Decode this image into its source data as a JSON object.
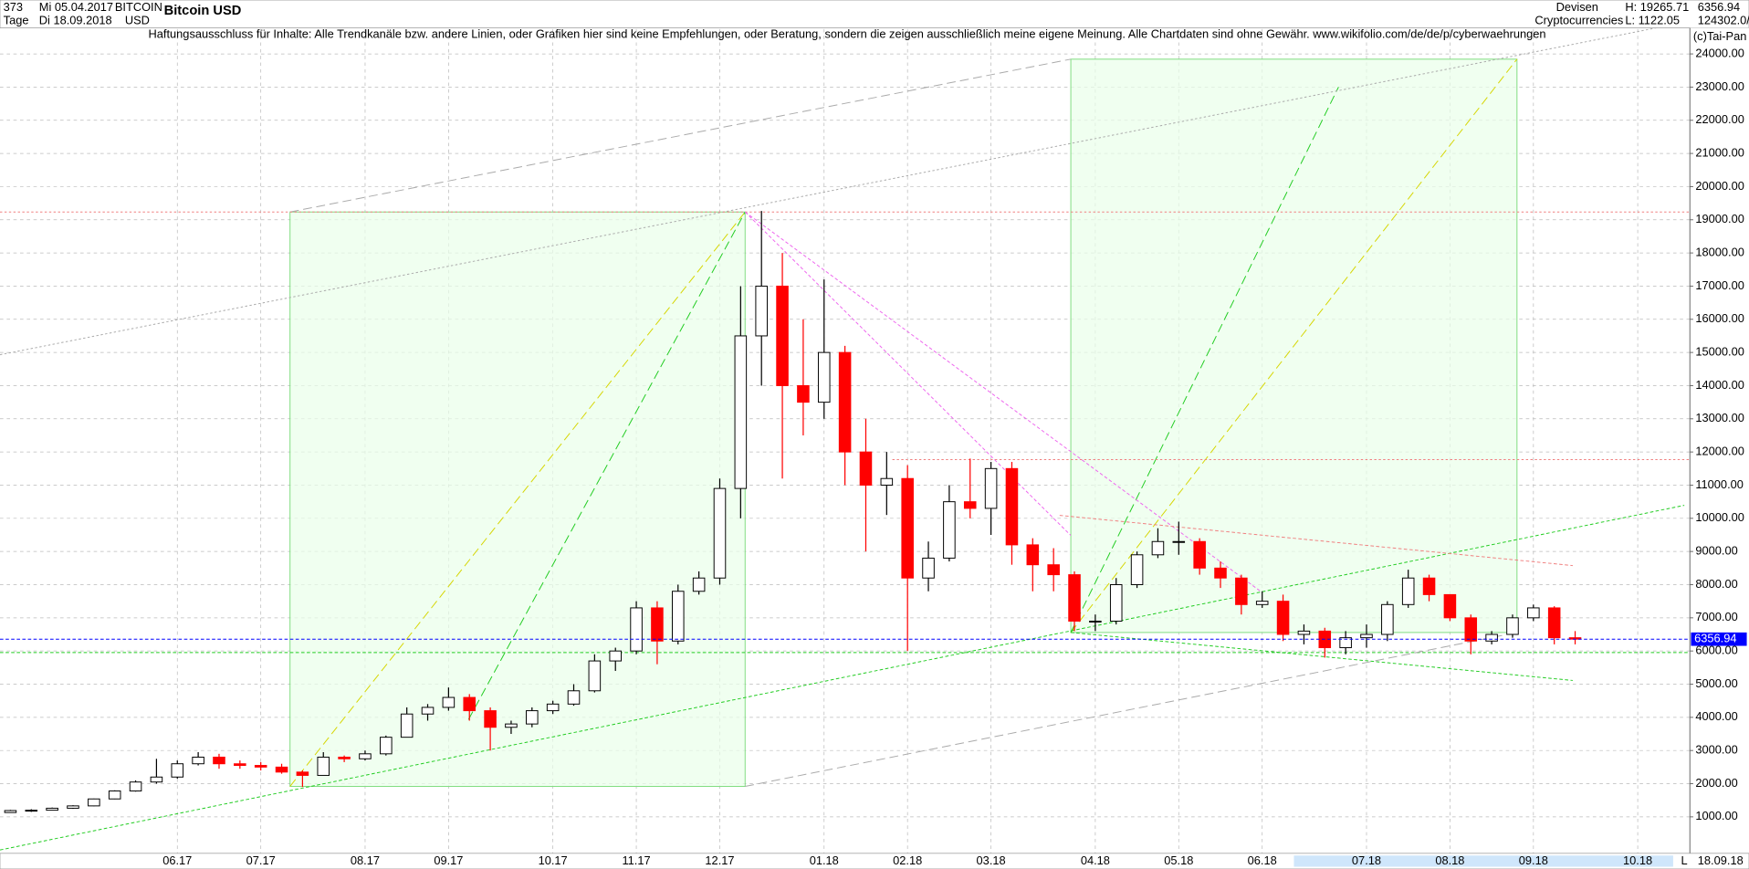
{
  "header": {
    "count": "373",
    "period": "Tage",
    "date_from": "Mi 05.04.2017",
    "date_to": "Di 18.09.2018",
    "symbol": "BITCOIN",
    "currency": "USD",
    "group": "Devisen",
    "subgroup": "Cryptocurrencies",
    "high": "H: 19265.71",
    "low": "L: 1122.05",
    "volume": "124302.0/",
    "copyright": "(c)Tai-Pan",
    "disclaimer": "Haftungsausschluss für Inhalte: Alle Trendkanäle bzw. andere Linien, oder Grafiken hier sind keine Empfehlungen, oder Beratung, sondern die zeigen ausschließlich meine eigene Meinung. Alle Chartdaten sind ohne Gewähr.  www.wikifolio.com/de/de/p/cyberwaehrungen",
    "end_date": "18.09.18",
    "scale_mark": "L"
  },
  "chart_data": {
    "type": "candlestick",
    "title": "Bitcoin USD",
    "categories": [
      null,
      null,
      null,
      null,
      null,
      null,
      null,
      null,
      "06.17",
      null,
      null,
      null,
      "07.17",
      null,
      null,
      null,
      null,
      "08.17",
      null,
      null,
      null,
      "09.17",
      null,
      null,
      null,
      null,
      "10.17",
      null,
      null,
      null,
      "11.17",
      null,
      null,
      null,
      "12.17",
      null,
      null,
      null,
      null,
      "01.18",
      null,
      null,
      null,
      "02.18",
      null,
      null,
      null,
      "03.18",
      null,
      null,
      null,
      null,
      "04.18",
      null,
      null,
      null,
      "05.18",
      null,
      null,
      null,
      "06.18",
      null,
      null,
      null,
      null,
      "07.18",
      null,
      null,
      null,
      "08.18",
      null,
      null,
      null,
      "09.18",
      null,
      null,
      null,
      null,
      "10.18",
      null,
      null
    ],
    "open": [
      1130,
      1190,
      1200,
      1260,
      1330,
      1540,
      1780,
      2050,
      2200,
      2600,
      2800,
      2600,
      2550,
      2500,
      2350,
      2250,
      2800,
      2750,
      2900,
      3400,
      4100,
      4300,
      4600,
      4200,
      3700,
      3800,
      4200,
      4400,
      4800,
      5700,
      6000,
      7300,
      6300,
      7800,
      8200,
      10900,
      15500,
      17000,
      14000,
      13500,
      15000,
      12000,
      11000,
      11200,
      8200,
      8800,
      10500,
      10300,
      11500,
      9200,
      8600,
      8300,
      6900,
      6900,
      8000,
      8900,
      9300,
      9300,
      8500,
      8200,
      7400,
      7500,
      6500,
      6600,
      6100,
      6400,
      6500,
      7400,
      8200,
      7700,
      7000,
      6300,
      6500,
      7000,
      7300,
      6400,
      null,
      null,
      null,
      null,
      null
    ],
    "high": [
      1210,
      1230,
      1280,
      1350,
      1550,
      1800,
      2100,
      2750,
      2700,
      2950,
      2900,
      2700,
      2650,
      2600,
      2400,
      2950,
      2850,
      3000,
      3450,
      4300,
      4400,
      4900,
      4700,
      4300,
      3900,
      4300,
      4500,
      5000,
      5900,
      6100,
      7500,
      7500,
      8000,
      8400,
      11200,
      17000,
      19265.71,
      18000,
      16000,
      17200,
      15200,
      13000,
      12000,
      11600,
      9300,
      11000,
      11800,
      11700,
      11700,
      9400,
      9100,
      8400,
      7100,
      8200,
      9000,
      9700,
      9900,
      9400,
      8700,
      8300,
      7800,
      7700,
      6800,
      6700,
      6600,
      6800,
      7500,
      8450,
      8300,
      7700,
      7100,
      6600,
      7100,
      7400,
      7350,
      6600,
      null,
      null,
      null,
      null,
      null
    ],
    "low": [
      1122.05,
      1150,
      1190,
      1240,
      1320,
      1530,
      1760,
      2000,
      2150,
      2550,
      2450,
      2450,
      2400,
      2300,
      1900,
      2250,
      2650,
      2700,
      2850,
      3400,
      3900,
      4200,
      3900,
      3000,
      3500,
      3700,
      4100,
      4350,
      4750,
      5400,
      5900,
      5600,
      6200,
      7700,
      8000,
      10000,
      14000,
      11200,
      12500,
      13000,
      11000,
      9000,
      10100,
      6000,
      7800,
      8700,
      10000,
      9500,
      8600,
      7800,
      7800,
      6600,
      6600,
      6800,
      7900,
      8800,
      8900,
      8300,
      7900,
      7100,
      7300,
      6300,
      6200,
      5800,
      5900,
      6100,
      6300,
      7300,
      7500,
      6900,
      5900,
      6200,
      6400,
      6900,
      6200,
      6200,
      null,
      null,
      null,
      null,
      null
    ],
    "close": [
      1190,
      1200,
      1260,
      1330,
      1540,
      1780,
      2050,
      2200,
      2600,
      2800,
      2600,
      2550,
      2500,
      2350,
      2250,
      2800,
      2750,
      2900,
      3400,
      4100,
      4300,
      4600,
      4200,
      3700,
      3800,
      4200,
      4400,
      4800,
      5700,
      6000,
      7300,
      6300,
      7800,
      8200,
      10900,
      15500,
      17000,
      14000,
      13500,
      15000,
      12000,
      11000,
      11200,
      8200,
      8800,
      10500,
      10300,
      11500,
      9200,
      8600,
      8300,
      6900,
      6900,
      8000,
      8900,
      9300,
      9300,
      8500,
      8200,
      7400,
      7500,
      6500,
      6600,
      6100,
      6400,
      6500,
      7400,
      8200,
      7700,
      7000,
      6300,
      6500,
      7000,
      7300,
      6400,
      6356.94,
      null,
      null,
      null,
      null,
      null
    ],
    "up_color": "#ffffff",
    "down_color": "#ff0000",
    "wick_color": "#000000",
    "last_price": {
      "value": 6356.94,
      "label": "6356.94"
    },
    "last_price_color": "#0000ff",
    "ylim": [
      -100,
      24750
    ],
    "yticks": [
      {
        "value": 1000,
        "label": "1000.00"
      },
      {
        "value": 2000,
        "label": "2000.00"
      },
      {
        "value": 3000,
        "label": "3000.00"
      },
      {
        "value": 4000,
        "label": "4000.00"
      },
      {
        "value": 5000,
        "label": "5000.00"
      },
      {
        "value": 6000,
        "label": "6000.00"
      },
      {
        "value": 7000,
        "label": "7000.00"
      },
      {
        "value": 8000,
        "label": "8000.00"
      },
      {
        "value": 9000,
        "label": "9000.00"
      },
      {
        "value": 10000,
        "label": "10000.00"
      },
      {
        "value": 11000,
        "label": "11000.00"
      },
      {
        "value": 12000,
        "label": "12000.00"
      },
      {
        "value": 13000,
        "label": "13000.00"
      },
      {
        "value": 14000,
        "label": "14000.00"
      },
      {
        "value": 15000,
        "label": "15000.00"
      },
      {
        "value": 16000,
        "label": "16000.00"
      },
      {
        "value": 17000,
        "label": "17000.00"
      },
      {
        "value": 18000,
        "label": "18000.00"
      },
      {
        "value": 19000,
        "label": "19000.00"
      },
      {
        "value": 20000,
        "label": "20000.00"
      },
      {
        "value": 21000,
        "label": "21000.00"
      },
      {
        "value": 22000,
        "label": "22000.00"
      },
      {
        "value": 23000,
        "label": "23000.00"
      },
      {
        "value": 24000,
        "label": "24000.00"
      }
    ],
    "grid": true
  }
}
